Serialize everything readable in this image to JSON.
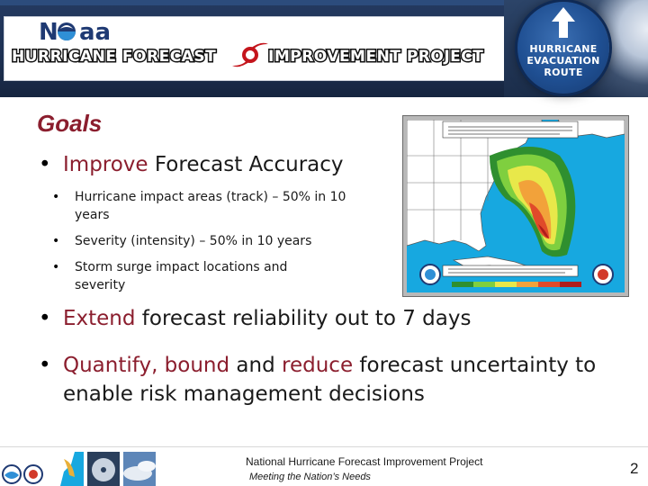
{
  "banner": {
    "logo_text": "N aa",
    "project_title": "HURRICANE FORECAST IMPROVEMENT PROJECT",
    "sign_lines": [
      "HURRICANE",
      "EVACUATION",
      "ROUTE"
    ]
  },
  "content": {
    "heading": "Goals",
    "bullets": [
      {
        "accent": "Improve",
        "rest": " Forecast Accuracy"
      },
      {
        "accent": "Extend",
        "rest": " forecast reliability out to 7 days"
      },
      {
        "accent": "Quantify, bound",
        "mid": " and ",
        "accent2": "reduce",
        "rest": " forecast uncertainty to enable risk management decisions"
      }
    ],
    "sub_bullets": [
      "Hurricane impact areas (track) – 50% in 10 years",
      "Severity (intensity) – 50% in 10 years",
      "Storm surge impact locations and severity"
    ]
  },
  "map": {
    "colors": {
      "ocean": "#17a8e0",
      "land": "#ffffff",
      "ring1": "#2f8f2f",
      "ring2": "#7fcf3f",
      "ring3": "#e8e84a",
      "ring4": "#f2a23a",
      "ring5": "#e04a2a",
      "ring6": "#b01c1c"
    }
  },
  "footer": {
    "title": "National Hurricane Forecast Improvement Project",
    "subtitle": "Meeting the Nation’s Needs",
    "page_number": "2"
  },
  "theme": {
    "accent": "#8b1e2e",
    "banner_bg": "#1d3154"
  }
}
